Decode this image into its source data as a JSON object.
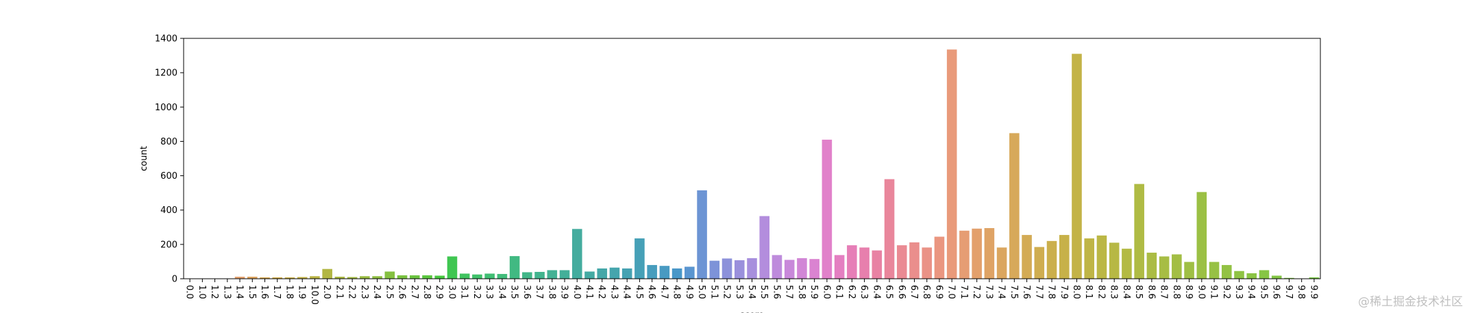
{
  "watermark": "@稀土掘金技术社区",
  "chart_data": {
    "type": "bar",
    "title": "",
    "xlabel": "score",
    "ylabel": "count",
    "ylim": [
      0,
      1400
    ],
    "yticks": [
      0,
      200,
      400,
      600,
      800,
      1000,
      1200,
      1400
    ],
    "grid": false,
    "categories": [
      "0.0",
      "1.0",
      "1.2",
      "1.3",
      "1.4",
      "1.5",
      "1.6",
      "1.7",
      "1.8",
      "1.9",
      "10.0",
      "2.0",
      "2.1",
      "2.2",
      "2.3",
      "2.4",
      "2.5",
      "2.6",
      "2.7",
      "2.8",
      "2.9",
      "3.0",
      "3.1",
      "3.2",
      "3.3",
      "3.4",
      "3.5",
      "3.6",
      "3.7",
      "3.8",
      "3.9",
      "4.0",
      "4.1",
      "4.2",
      "4.3",
      "4.4",
      "4.5",
      "4.6",
      "4.7",
      "4.8",
      "4.9",
      "5.0",
      "5.1",
      "5.2",
      "5.3",
      "5.4",
      "5.5",
      "5.6",
      "5.7",
      "5.8",
      "5.9",
      "6.0",
      "6.1",
      "6.2",
      "6.3",
      "6.4",
      "6.5",
      "6.6",
      "6.7",
      "6.8",
      "6.9",
      "7.0",
      "7.1",
      "7.2",
      "7.3",
      "7.4",
      "7.5",
      "7.6",
      "7.7",
      "7.8",
      "7.9",
      "8.0",
      "8.1",
      "8.2",
      "8.3",
      "8.4",
      "8.5",
      "8.6",
      "8.7",
      "8.8",
      "8.9",
      "9.0",
      "9.1",
      "9.2",
      "9.3",
      "9.4",
      "9.5",
      "9.6",
      "9.7",
      "9.8",
      "9.9"
    ],
    "values": [
      2,
      1,
      2,
      2,
      12,
      12,
      8,
      8,
      8,
      10,
      15,
      57,
      12,
      10,
      15,
      15,
      42,
      20,
      20,
      20,
      18,
      130,
      30,
      25,
      30,
      28,
      132,
      38,
      40,
      50,
      50,
      290,
      42,
      60,
      65,
      60,
      235,
      80,
      75,
      60,
      70,
      515,
      105,
      118,
      108,
      120,
      365,
      138,
      110,
      120,
      115,
      810,
      138,
      195,
      182,
      165,
      580,
      195,
      212,
      182,
      245,
      1335,
      280,
      292,
      295,
      182,
      848,
      255,
      185,
      220,
      255,
      1310,
      235,
      252,
      210,
      175,
      552,
      152,
      130,
      142,
      98,
      505,
      98,
      80,
      45,
      32,
      50,
      18,
      5,
      2,
      8
    ],
    "colors": [
      "#ea96a3",
      "#e99896",
      "#e89a89",
      "#e59d7c",
      "#e2a16f",
      "#dda561",
      "#d7a84f",
      "#d0ac48",
      "#c9af47",
      "#c2b146",
      "#bab445",
      "#b2b644",
      "#aab844",
      "#a2ba43",
      "#99bc42",
      "#8fbe42",
      "#85c041",
      "#79c240",
      "#6bc440",
      "#5bc63f",
      "#48c83f",
      "#3fc651",
      "#40c35f",
      "#40c16a",
      "#40be73",
      "#41bc7b",
      "#41b982",
      "#42b688",
      "#42b48e",
      "#43b194",
      "#43af99",
      "#44ac9e",
      "#44aaa3",
      "#45a7a8",
      "#45a5ad",
      "#46a2b2",
      "#46a0b7",
      "#479dbd",
      "#489ac2",
      "#4997c8",
      "#5a95d0",
      "#6c94d4",
      "#7d93d8",
      "#8c91da",
      "#9a90dc",
      "#a78fdd",
      "#b38ddd",
      "#be8bdc",
      "#c888da",
      "#d186d6",
      "#da83d1",
      "#e181ca",
      "#e47fc1",
      "#e67eb7",
      "#e77fad",
      "#e882a3",
      "#e9869b",
      "#ea8a93",
      "#ea8e8c",
      "#ea9286",
      "#ea9680",
      "#e99a7a",
      "#e69d73",
      "#e3a06c",
      "#dfa365",
      "#dba65f",
      "#d7a95a",
      "#d3ab55",
      "#cfad50",
      "#cbaf4c",
      "#c7b149",
      "#c3b347",
      "#bfb546",
      "#bbb745",
      "#b7b844",
      "#b3ba44",
      "#afbb44",
      "#abbc44",
      "#a7bd44",
      "#a3be44",
      "#9fbf44",
      "#9bc044",
      "#97c144",
      "#93c244",
      "#8fc344",
      "#8bc444",
      "#87c544",
      "#83c644",
      "#7fc744",
      "#7bc844",
      "#77c944"
    ]
  }
}
